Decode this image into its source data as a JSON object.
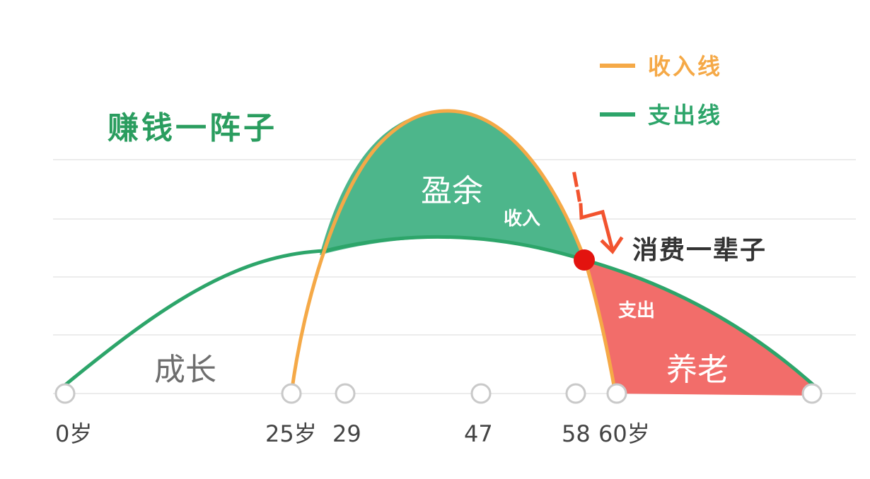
{
  "legend": {
    "income_label": "收入线",
    "expense_label": "支出线"
  },
  "title": "赚钱一阵子",
  "regions": {
    "surplus": "盈余",
    "income": "收入",
    "expense": "支出",
    "retirement": "养老",
    "growth": "成长"
  },
  "annotation": "消费一辈子",
  "ticks": [
    "0岁",
    "25岁",
    "29",
    "47",
    "58",
    "60岁"
  ],
  "colors": {
    "income_line": "#f5a947",
    "expense_line": "#2da56a",
    "surplus_fill": "#4db68b",
    "deficit_fill": "#f26d6a",
    "intersection": "#e3130f",
    "arrow": "#f2532e",
    "title": "#2a9d5f",
    "legend_income_text": "#f5a947",
    "legend_expense_text": "#2da56a",
    "grid": "#ececec"
  }
}
